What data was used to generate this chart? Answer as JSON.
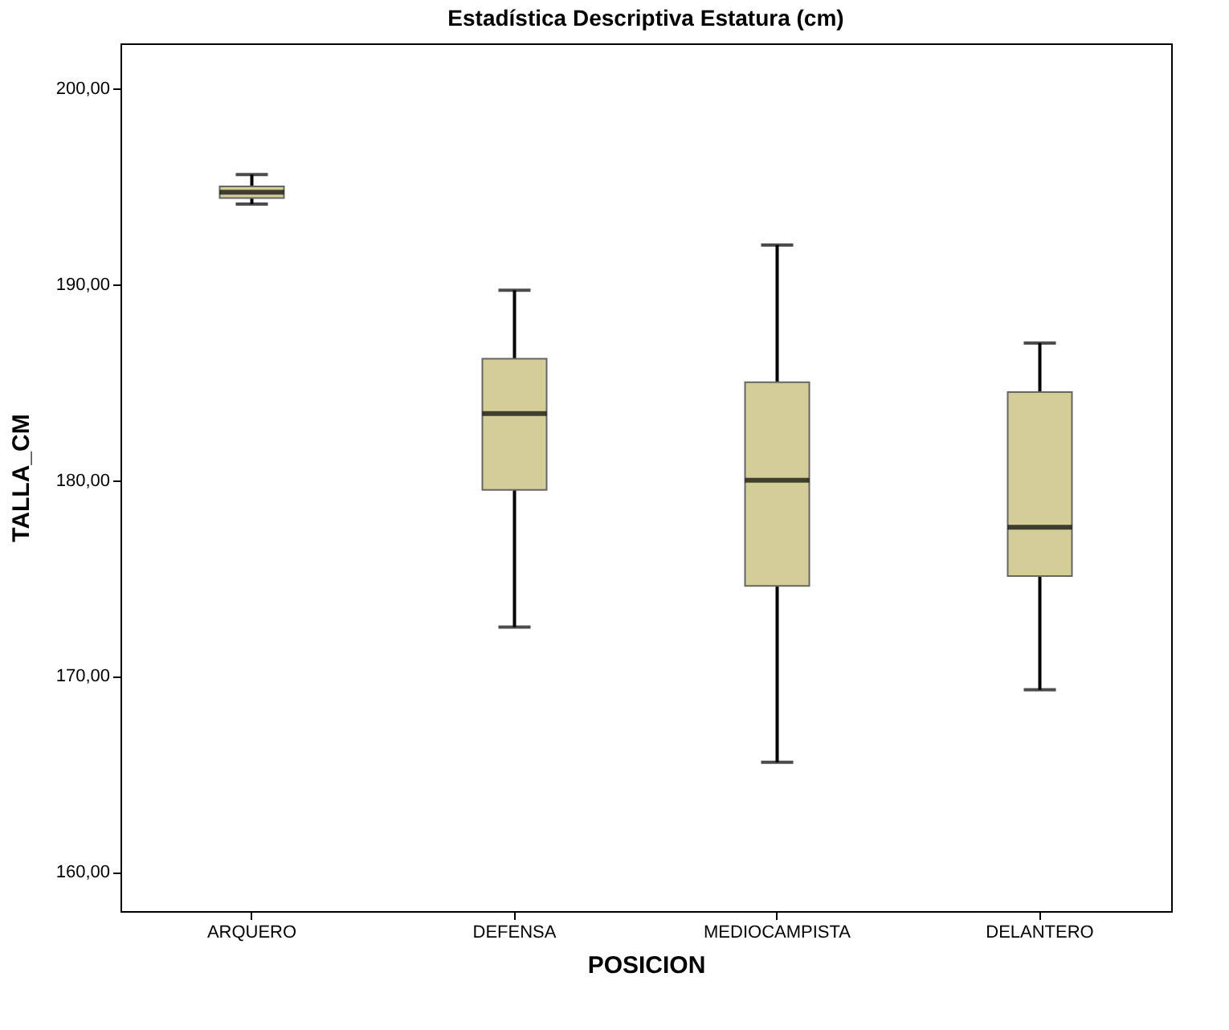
{
  "chart_data": {
    "type": "box",
    "title": "Estadística Descriptiva Estatura (cm)",
    "xlabel": "POSICION",
    "ylabel": "TALLA_CM",
    "categories": [
      "ARQUERO",
      "DEFENSA",
      "MEDIOCAMPISTA",
      "DELANTERO"
    ],
    "boxes": [
      {
        "low": 194.1,
        "q1": 194.4,
        "median": 194.7,
        "q3": 195.0,
        "high": 195.6
      },
      {
        "low": 172.5,
        "q1": 179.5,
        "median": 183.4,
        "q3": 186.2,
        "high": 189.7
      },
      {
        "low": 165.6,
        "q1": 174.6,
        "median": 180.0,
        "q3": 185.0,
        "high": 192.0
      },
      {
        "low": 169.3,
        "q1": 175.1,
        "median": 177.6,
        "q3": 184.5,
        "high": 187.0
      }
    ],
    "color": "#d3ce97",
    "ylim": [
      158.0,
      202.3
    ],
    "yticks": [
      {
        "value": 160,
        "label": "160,00"
      },
      {
        "value": 170,
        "label": "170,00"
      },
      {
        "value": 180,
        "label": "180,00"
      },
      {
        "value": 190,
        "label": "190,00"
      },
      {
        "value": 200,
        "label": "200,00"
      }
    ],
    "grid": false
  }
}
